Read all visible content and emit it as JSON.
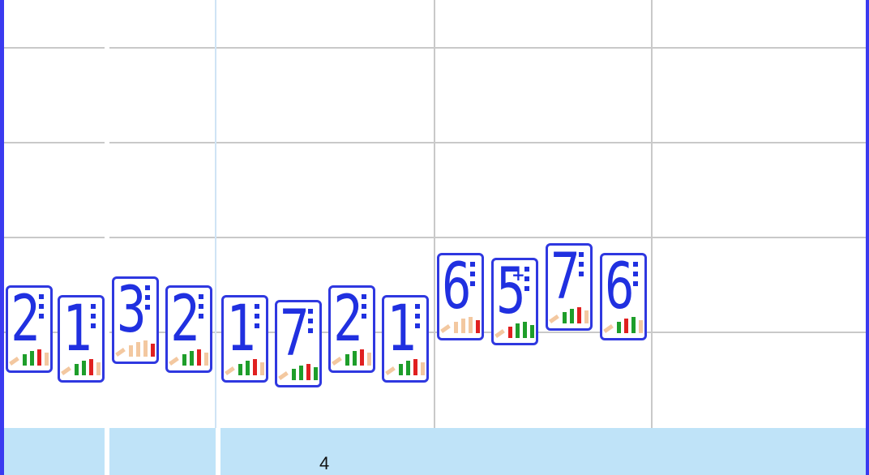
{
  "measure_number": "4",
  "colors": {
    "frame": "#3a3af0",
    "card_border": "#2f38e0",
    "digit": "#2030e0",
    "bar_green": "#1e9e2a",
    "bar_red": "#e02020",
    "bar_tan": "#f3c8a0",
    "band": "#bfe3f8",
    "grid": "#c9c9c9"
  },
  "cards": [
    {
      "label": "2",
      "mark": "",
      "bars": [
        "green",
        "green",
        "red",
        "tan"
      ]
    },
    {
      "label": "1",
      "mark": "",
      "bars": [
        "green",
        "green",
        "red",
        "tan"
      ]
    },
    {
      "label": "3",
      "mark": "",
      "bars": [
        "tan",
        "tan",
        "tan",
        "red"
      ]
    },
    {
      "label": "2",
      "mark": "",
      "bars": [
        "green",
        "green",
        "red",
        "tan"
      ]
    },
    {
      "label": "1",
      "mark": "",
      "bars": [
        "green",
        "green",
        "red",
        "tan"
      ]
    },
    {
      "label": "7",
      "mark": "",
      "bars": [
        "green",
        "green",
        "red",
        "green"
      ]
    },
    {
      "label": "2",
      "mark": "",
      "bars": [
        "green",
        "green",
        "red",
        "tan"
      ]
    },
    {
      "label": "1",
      "mark": "",
      "bars": [
        "green",
        "green",
        "red",
        "tan"
      ]
    },
    {
      "label": "6",
      "mark": "",
      "bars": [
        "tan",
        "tan",
        "tan",
        "red"
      ]
    },
    {
      "label": "5",
      "mark": "+",
      "bars": [
        "red",
        "green",
        "green",
        "green"
      ]
    },
    {
      "label": "7",
      "mark": "",
      "bars": [
        "green",
        "green",
        "red",
        "tan"
      ]
    },
    {
      "label": "6",
      "mark": "",
      "bars": [
        "green",
        "red",
        "green",
        "tan"
      ]
    }
  ]
}
